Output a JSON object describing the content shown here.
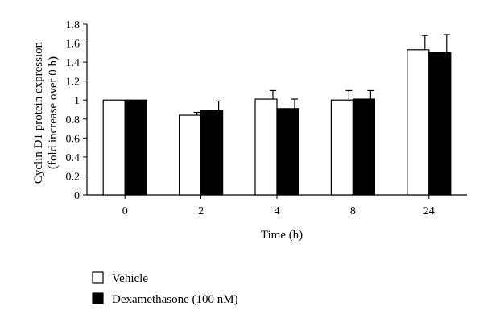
{
  "chart_data": {
    "type": "bar",
    "categories": [
      "0",
      "2",
      "4",
      "8",
      "24"
    ],
    "series": [
      {
        "name": "Vehicle",
        "color": "#ffffff",
        "values": [
          1.0,
          0.84,
          1.01,
          1.0,
          1.53
        ],
        "errors": [
          0.0,
          0.03,
          0.09,
          0.1,
          0.15
        ]
      },
      {
        "name": "Dexamethasone (100 nM)",
        "color": "#000000",
        "values": [
          1.0,
          0.89,
          0.91,
          1.01,
          1.5
        ],
        "errors": [
          0.0,
          0.1,
          0.1,
          0.09,
          0.19
        ]
      }
    ],
    "title": "",
    "xlabel": "Time (h)",
    "ylabel_line1": "Cyclin D1 protein expression",
    "ylabel_line2": "(fold increase over 0 h)",
    "ylim": [
      0,
      1.8
    ],
    "yticks": [
      "0",
      "0.2",
      "0.4",
      "0.6",
      "0.8",
      "1",
      "1.2",
      "1.4",
      "1.6",
      "1.8"
    ],
    "grid": false,
    "legend_position": "bottom-left"
  }
}
